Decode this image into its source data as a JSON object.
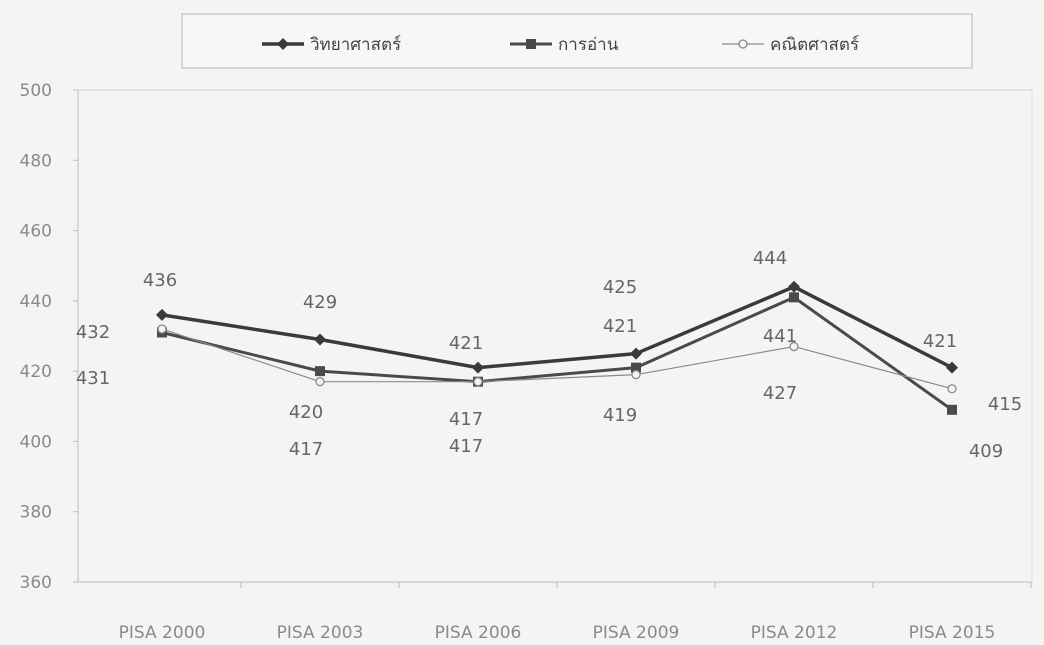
{
  "chart_data": {
    "type": "line",
    "categories": [
      "PISA 2000",
      "PISA 2003",
      "PISA 2006",
      "PISA 2009",
      "PISA 2012",
      "PISA 2015"
    ],
    "series": [
      {
        "name": "วิทยาศาสตร์",
        "values": [
          436,
          429,
          421,
          425,
          444,
          421
        ],
        "color": "#3a3a3a",
        "marker": "diamond"
      },
      {
        "name": "การอ่าน",
        "values": [
          431,
          420,
          417,
          421,
          441,
          409
        ],
        "color": "#4a4a4a",
        "marker": "square"
      },
      {
        "name": "คณิตศาสตร์",
        "values": [
          432,
          417,
          417,
          419,
          427,
          415
        ],
        "color": "#8a8a8a",
        "marker": "circle"
      }
    ],
    "ylim": [
      360,
      500
    ],
    "yticks": [
      360,
      380,
      400,
      420,
      440,
      460,
      480,
      500
    ],
    "grid": false,
    "legend_position": "top"
  }
}
